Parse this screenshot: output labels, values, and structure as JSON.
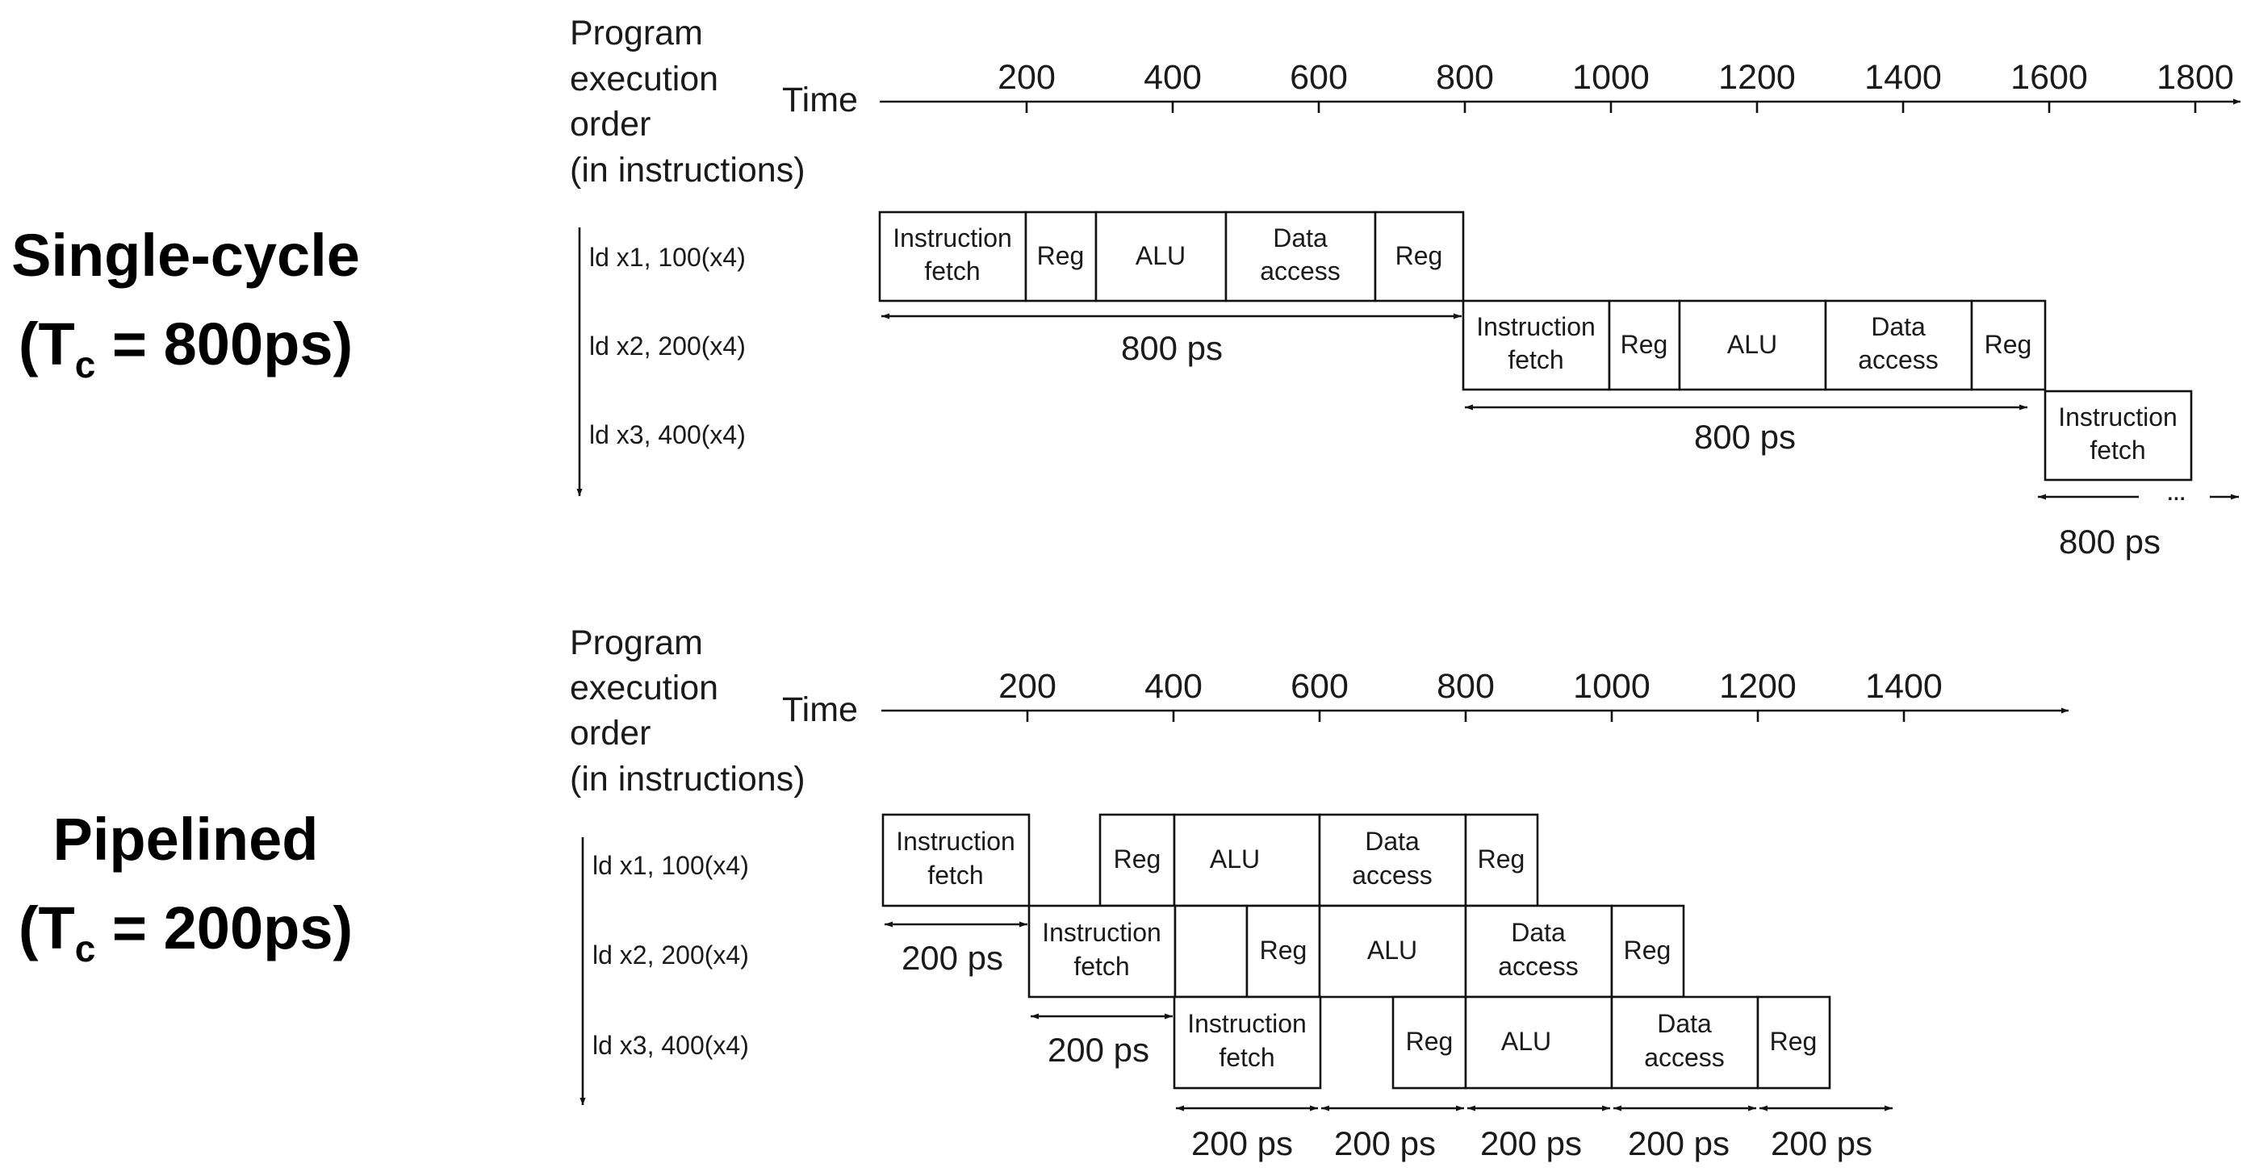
{
  "side_labels": {
    "single_title": "Single-cycle",
    "single_tc_open": "(T",
    "single_tc_sub": "c",
    "single_tc_value": " = 800ps)",
    "pipe_title": "Pipelined",
    "pipe_tc_open": "(T",
    "pipe_tc_sub": "c",
    "pipe_tc_value": " = 200ps)"
  },
  "axis_header": {
    "line1": "Program",
    "line2": "execution",
    "line3": "order",
    "line4": "(in instructions)",
    "time_label": "Time"
  },
  "single_cycle": {
    "ticks": [
      "200",
      "400",
      "600",
      "800",
      "1000",
      "1200",
      "1400",
      "1600",
      "1800"
    ],
    "instructions": [
      "ld x1, 100(x4)",
      "ld x2, 200(x4)",
      "ld x3, 400(x4)"
    ],
    "stage_1": {
      "fetch_a": "Instruction",
      "fetch_b": "fetch",
      "reg1": "Reg",
      "alu": "ALU",
      "data_a": "Data",
      "data_b": "access",
      "reg2": "Reg"
    },
    "stage_2": {
      "fetch_a": "Instruction",
      "fetch_b": "fetch",
      "reg1": "Reg",
      "alu": "ALU",
      "data_a": "Data",
      "data_b": "access",
      "reg2": "Reg"
    },
    "stage_3": {
      "fetch_a": "Instruction",
      "fetch_b": "fetch"
    },
    "durations": [
      "800 ps",
      "800 ps",
      "800 ps"
    ],
    "ellipsis": "..."
  },
  "pipelined": {
    "ticks": [
      "200",
      "400",
      "600",
      "800",
      "1000",
      "1200",
      "1400"
    ],
    "instructions": [
      "ld x1, 100(x4)",
      "ld x2, 200(x4)",
      "ld x3, 400(x4)"
    ],
    "stage_1": {
      "fetch_a": "Instruction",
      "fetch_b": "fetch",
      "reg1": "Reg",
      "alu": "ALU",
      "data_a": "Data",
      "data_b": "access",
      "reg2": "Reg"
    },
    "stage_2": {
      "fetch_a": "Instruction",
      "fetch_b": "fetch",
      "reg1": "Reg",
      "alu": "ALU",
      "data_a": "Data",
      "data_b": "access",
      "reg2": "Reg"
    },
    "stage_3": {
      "fetch_a": "Instruction",
      "fetch_b": "fetch",
      "reg1": "Reg",
      "alu": "ALU",
      "data_a": "Data",
      "data_b": "access",
      "reg2": "Reg"
    },
    "durations": [
      "200 ps",
      "200 ps",
      "200 ps",
      "200 ps",
      "200 ps",
      "200 ps",
      "200 ps"
    ]
  }
}
